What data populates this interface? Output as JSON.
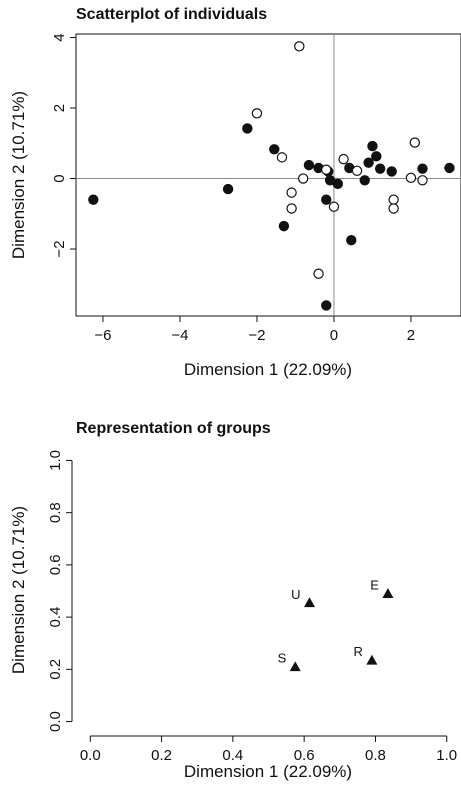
{
  "chart_data": [
    {
      "type": "scatter",
      "title": "Scatterplot of individuals",
      "xlabel": "Dimension 1 (22.09%)",
      "ylabel": "Dimension 2 (10.71%)",
      "xlim": [
        -6.7,
        3.3
      ],
      "ylim": [
        -3.9,
        4.1
      ],
      "xticks": [
        -6,
        -4,
        -2,
        0,
        2
      ],
      "yticks": [
        -2,
        0,
        2,
        4
      ],
      "reference_lines": {
        "x": 0,
        "y": 0
      },
      "series": [
        {
          "marker": "filled-circle",
          "color": "#111111",
          "points": [
            [
              -6.25,
              -0.6
            ],
            [
              -2.75,
              -0.3
            ],
            [
              -2.25,
              1.42
            ],
            [
              -1.55,
              0.83
            ],
            [
              -1.3,
              -1.35
            ],
            [
              -0.65,
              0.38
            ],
            [
              -0.4,
              0.3
            ],
            [
              -0.15,
              0.2
            ],
            [
              -0.2,
              -0.6
            ],
            [
              -0.1,
              -0.05
            ],
            [
              0.1,
              -0.15
            ],
            [
              0.4,
              0.3
            ],
            [
              0.45,
              -1.75
            ],
            [
              0.8,
              -0.05
            ],
            [
              0.9,
              0.45
            ],
            [
              1.0,
              0.92
            ],
            [
              1.1,
              0.63
            ],
            [
              1.2,
              0.28
            ],
            [
              1.5,
              0.2
            ],
            [
              2.3,
              0.28
            ],
            [
              3.0,
              0.3
            ],
            [
              -0.2,
              -3.6
            ]
          ]
        },
        {
          "marker": "open-circle",
          "color": "#111111",
          "points": [
            [
              -0.9,
              3.75
            ],
            [
              -2.0,
              1.85
            ],
            [
              -1.35,
              0.6
            ],
            [
              -1.1,
              -0.4
            ],
            [
              -1.1,
              -0.85
            ],
            [
              -0.8,
              0.0
            ],
            [
              -0.2,
              0.25
            ],
            [
              0.0,
              -0.8
            ],
            [
              0.25,
              0.55
            ],
            [
              0.6,
              0.22
            ],
            [
              -0.4,
              -2.7
            ],
            [
              1.55,
              -0.6
            ],
            [
              1.55,
              -0.85
            ],
            [
              2.0,
              0.02
            ],
            [
              2.1,
              1.02
            ],
            [
              2.3,
              -0.05
            ]
          ]
        }
      ]
    },
    {
      "type": "scatter",
      "title": "Representation of groups",
      "xlabel": "Dimension 1 (22.09%)",
      "ylabel": "Dimension 2 (10.71%)",
      "xlim": [
        -0.04,
        1.04
      ],
      "ylim": [
        -0.04,
        1.04
      ],
      "xticks": [
        0.0,
        0.2,
        0.4,
        0.6,
        0.8,
        1.0
      ],
      "yticks": [
        0.0,
        0.2,
        0.4,
        0.6,
        0.8,
        1.0
      ],
      "marker": "filled-triangle",
      "points": [
        {
          "label": "U",
          "x": 0.615,
          "y": 0.455
        },
        {
          "label": "E",
          "x": 0.835,
          "y": 0.49
        },
        {
          "label": "S",
          "x": 0.575,
          "y": 0.21
        },
        {
          "label": "R",
          "x": 0.79,
          "y": 0.235
        }
      ]
    }
  ]
}
